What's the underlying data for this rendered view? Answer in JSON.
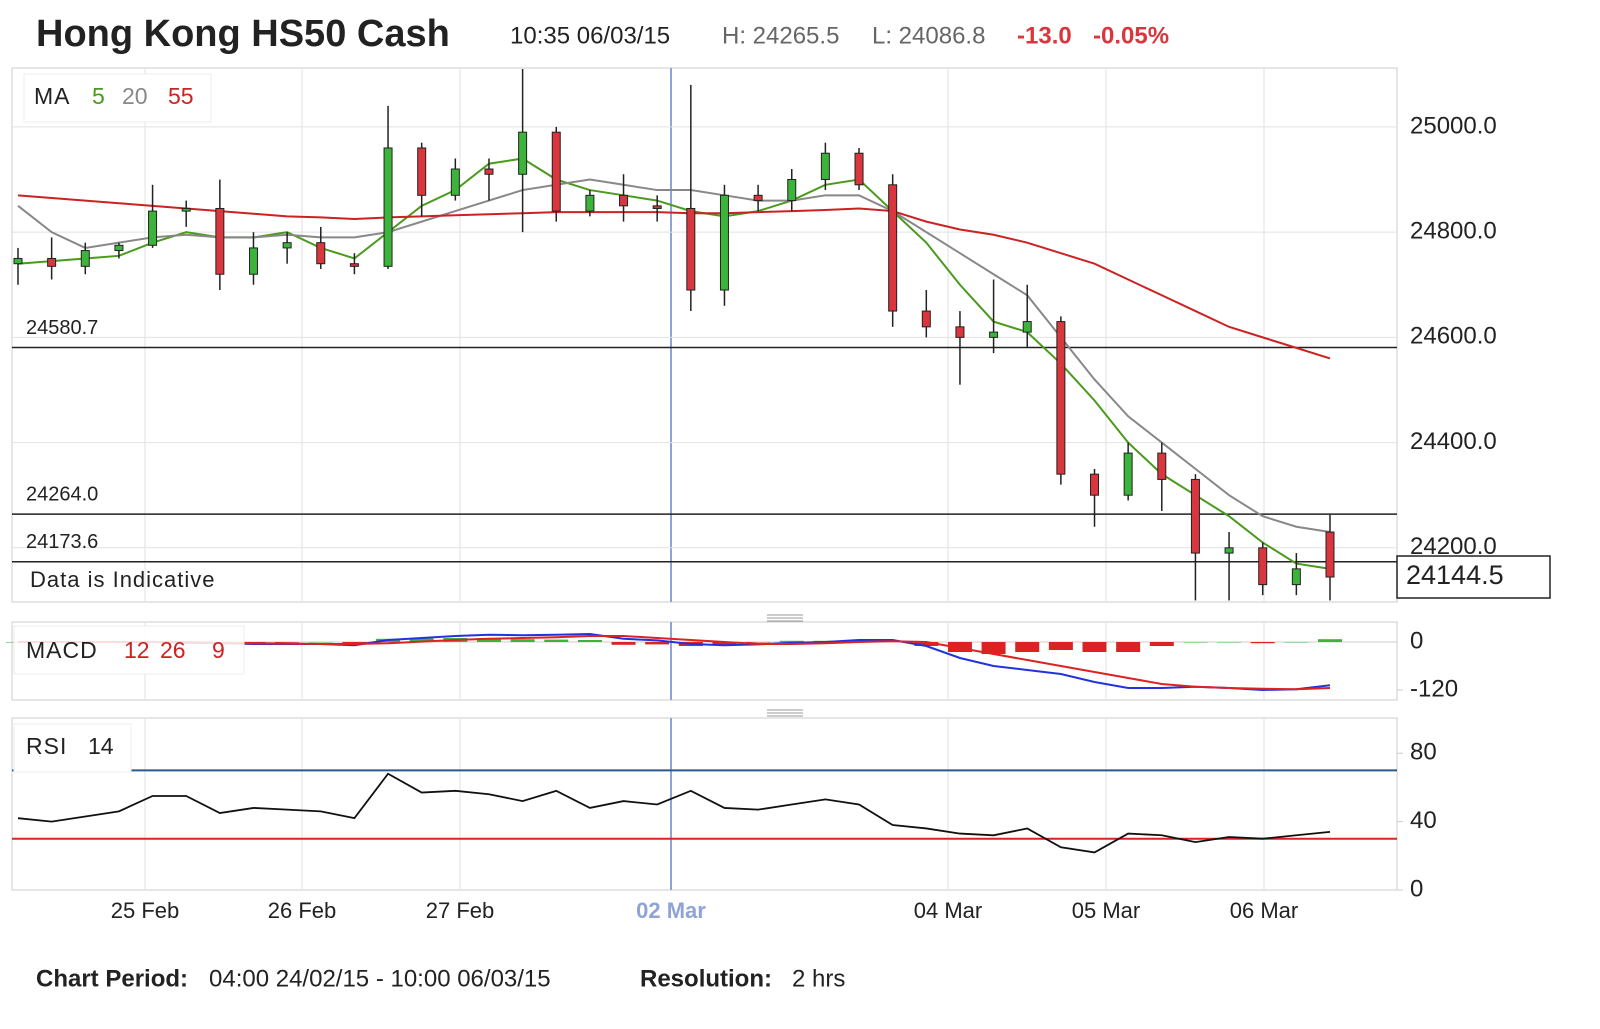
{
  "chart_data": {
    "type": "candlestick",
    "title": "Hong Kong HS50 Cash",
    "time": "10:35 06/03/15",
    "high_label": "H: 24265.5",
    "low_label": "L: 24086.8",
    "change": "-13.0",
    "change_pct": "-0.05%",
    "days": [
      "25 Feb",
      "26 Feb",
      "27 Feb",
      "02 Mar",
      "04 Mar",
      "05 Mar",
      "06 Mar"
    ],
    "ylim": [
      24097,
      25112
    ],
    "yticks": [
      {
        "value": 24200,
        "label": "24200.0"
      },
      {
        "value": 24400,
        "label": "24400.0"
      },
      {
        "value": 24600,
        "label": "24600.0"
      },
      {
        "value": 24800,
        "label": "24800.0"
      },
      {
        "value": 25000,
        "label": "25000.0"
      }
    ],
    "grid": true,
    "levels": [
      24580.7,
      24264.0,
      24173.6
    ],
    "level_labels": [
      "24580.7",
      "24264.0",
      "24173.6"
    ],
    "notice": "Data is Indicative",
    "current_price": 24144.5,
    "up_color": "#3cb43c",
    "down_color": "#d9363e",
    "open": [
      24740,
      24750,
      24735,
      24765,
      24775,
      24840,
      24845,
      24720,
      24770,
      24780,
      24740,
      24735,
      24960,
      24870,
      24920,
      24910,
      24990,
      24840,
      24870,
      24850,
      24845,
      24690,
      24870,
      24860,
      24900,
      24950,
      24890,
      24650,
      24620,
      24600,
      24610,
      24630,
      24340,
      24300,
      24380,
      24330,
      24190,
      24200,
      24130,
      24230
    ],
    "high": [
      24770,
      24790,
      24780,
      24780,
      24890,
      24860,
      24900,
      24800,
      24800,
      24810,
      24760,
      25040,
      24970,
      24940,
      24940,
      25110,
      25000,
      24880,
      24910,
      24870,
      25080,
      24890,
      24890,
      24920,
      24970,
      24960,
      24910,
      24690,
      24650,
      24710,
      24700,
      24640,
      24350,
      24400,
      24400,
      24340,
      24230,
      24210,
      24190,
      24265
    ],
    "low": [
      24700,
      24710,
      24720,
      24750,
      24770,
      24810,
      24690,
      24700,
      24740,
      24730,
      24720,
      24730,
      24830,
      24860,
      24860,
      24800,
      24820,
      24830,
      24820,
      24820,
      24650,
      24660,
      24840,
      24840,
      24880,
      24880,
      24620,
      24600,
      24510,
      24570,
      24580,
      24320,
      24240,
      24290,
      24270,
      24100,
      24100,
      24110,
      24110,
      24100
    ],
    "close": [
      24750,
      24735,
      24765,
      24775,
      24840,
      24845,
      24720,
      24770,
      24780,
      24740,
      24735,
      24960,
      24870,
      24920,
      24910,
      24990,
      24840,
      24870,
      24850,
      24845,
      24690,
      24870,
      24860,
      24900,
      24950,
      24890,
      24650,
      24620,
      24600,
      24610,
      24630,
      24340,
      24300,
      24380,
      24330,
      24190,
      24200,
      24130,
      24160,
      24144.5
    ],
    "ma_label": "MA",
    "ma": [
      {
        "name": "5",
        "color": "#4a9a1c",
        "values": [
          24740,
          24745,
          24750,
          24755,
          24780,
          24800,
          24790,
          24790,
          24800,
          24770,
          24750,
          24800,
          24850,
          24880,
          24930,
          24940,
          24900,
          24880,
          24870,
          24860,
          24840,
          24830,
          24840,
          24860,
          24890,
          24900,
          24840,
          24780,
          24700,
          24630,
          24610,
          24550,
          24480,
          24400,
          24340,
          24300,
          24260,
          24210,
          24170,
          24160
        ]
      },
      {
        "name": "20",
        "color": "#888888",
        "values": [
          24850,
          24800,
          24770,
          24780,
          24790,
          24795,
          24790,
          24790,
          24795,
          24790,
          24790,
          24800,
          24820,
          24840,
          24860,
          24880,
          24890,
          24900,
          24890,
          24880,
          24880,
          24870,
          24860,
          24860,
          24870,
          24870,
          24840,
          24800,
          24760,
          24720,
          24680,
          24600,
          24520,
          24450,
          24400,
          24350,
          24300,
          24260,
          24240,
          24230
        ]
      },
      {
        "name": "55",
        "color": "#cc2222",
        "values": [
          24870,
          24865,
          24860,
          24855,
          24850,
          24845,
          24840,
          24835,
          24830,
          24828,
          24825,
          24828,
          24830,
          24832,
          24834,
          24836,
          24838,
          24838,
          24838,
          24838,
          24836,
          24836,
          24838,
          24840,
          24842,
          24845,
          24840,
          24820,
          24805,
          24795,
          24780,
          24760,
          24740,
          24710,
          24680,
          24650,
          24620,
          24600,
          24580,
          24560
        ]
      }
    ],
    "macd": {
      "label": "MACD",
      "params": [
        "12",
        "26",
        "9"
      ],
      "ylim": [
        -145,
        50
      ],
      "yticks": [
        -120,
        0
      ],
      "series": [
        {
          "name": "macd",
          "color": "#2233dd",
          "values": [
            0,
            0,
            0,
            0,
            0,
            -2,
            -3,
            -5,
            -5,
            -5,
            -8,
            5,
            10,
            15,
            18,
            17,
            18,
            20,
            8,
            4,
            -5,
            -8,
            -6,
            -2,
            0,
            5,
            5,
            -10,
            -40,
            -60,
            -70,
            -80,
            -100,
            -115,
            -115,
            -112,
            -115,
            -120,
            -118,
            -108
          ]
        },
        {
          "name": "signal",
          "color": "#dd2222",
          "values": [
            0,
            0,
            0,
            0,
            0,
            0,
            -2,
            -3,
            -4,
            -5,
            -5,
            -3,
            1,
            5,
            8,
            10,
            12,
            15,
            15,
            10,
            5,
            0,
            -5,
            -5,
            -3,
            0,
            2,
            0,
            -15,
            -30,
            -45,
            -60,
            -75,
            -90,
            -105,
            -112,
            -115,
            -117,
            -118,
            -115
          ]
        }
      ],
      "histogram": [
        0,
        0,
        0,
        0,
        0,
        -2,
        -1,
        -2,
        -1,
        0,
        -3,
        8,
        9,
        10,
        10,
        7,
        6,
        5,
        -7,
        -6,
        -10,
        -8,
        -1,
        3,
        3,
        5,
        3,
        -10,
        -25,
        -30,
        -25,
        -20,
        -25,
        -25,
        -10,
        0,
        0,
        -3,
        0,
        7
      ]
    },
    "rsi": {
      "label": "RSI",
      "period": "14",
      "ylim": [
        0,
        100.6
      ],
      "yticks": [
        0,
        40,
        80
      ],
      "levels": [
        70,
        30
      ],
      "values": [
        42,
        40,
        43,
        46,
        55,
        55,
        45,
        48,
        47,
        46,
        42,
        68,
        57,
        58,
        56,
        52,
        58,
        48,
        52,
        50,
        58,
        48,
        47,
        50,
        53,
        50,
        38,
        36,
        33,
        32,
        36,
        25,
        22,
        33,
        32,
        28,
        31,
        30,
        32,
        34
      ]
    },
    "footer": [
      [
        "Chart Period:",
        "04:00 24/02/15 - 10:00 06/03/15"
      ],
      [
        "Resolution:",
        "2 hrs"
      ]
    ]
  }
}
